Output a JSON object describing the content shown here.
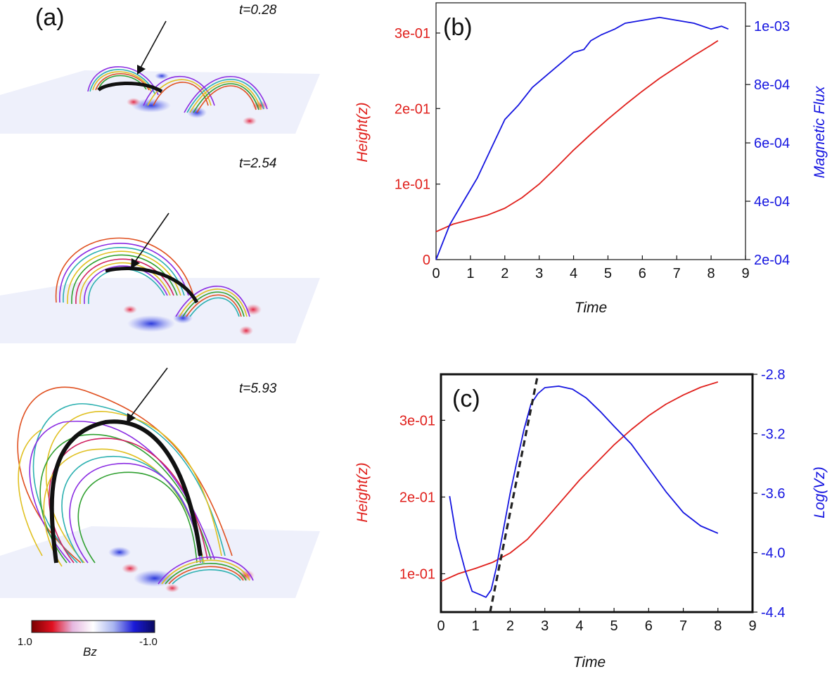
{
  "panel_a": {
    "label": "(a)",
    "snapshots": [
      {
        "time_label": "t=0.28"
      },
      {
        "time_label": "t=2.54"
      },
      {
        "time_label": "t=5.93"
      }
    ],
    "colorbar": {
      "title": "Bz",
      "min_label": "1.0",
      "max_label": "-1.0",
      "colors": [
        "#7a0000",
        "#e01020",
        "#e6b8e0",
        "#ffffff",
        "#a8b4f0",
        "#1a1ad8",
        "#0a0a60"
      ]
    }
  },
  "chart_data": [
    {
      "type": "line",
      "panel_label": "(b)",
      "xlabel": "Time",
      "ylabel_left": "Height(z)",
      "ylabel_right": "Magnetic Flux",
      "xlim": [
        0,
        9
      ],
      "ylim_left": [
        0,
        0.34
      ],
      "ylim_right": [
        0.0002,
        0.00108
      ],
      "x_ticks": [
        "0",
        "1",
        "2",
        "3",
        "4",
        "5",
        "6",
        "7",
        "8",
        "9"
      ],
      "y_ticks_left": [
        {
          "value": 0,
          "label": "0"
        },
        {
          "value": 0.1,
          "label": "1e-01"
        },
        {
          "value": 0.2,
          "label": "2e-01"
        },
        {
          "value": 0.3,
          "label": "3e-01"
        }
      ],
      "y_ticks_right": [
        {
          "value": 0.0002,
          "label": "2e-04"
        },
        {
          "value": 0.0004,
          "label": "4e-04"
        },
        {
          "value": 0.0006,
          "label": "6e-04"
        },
        {
          "value": 0.0008,
          "label": "8e-04"
        },
        {
          "value": 0.001,
          "label": "1e-03"
        }
      ],
      "series": [
        {
          "name": "Height",
          "axis": "left",
          "color": "#e0201c",
          "x": [
            0,
            0.5,
            1,
            1.5,
            2,
            2.5,
            3,
            3.5,
            4,
            4.5,
            5,
            5.5,
            6,
            6.5,
            7,
            7.5,
            8,
            8.2
          ],
          "y": [
            0.037,
            0.047,
            0.053,
            0.059,
            0.068,
            0.082,
            0.1,
            0.122,
            0.145,
            0.166,
            0.186,
            0.205,
            0.223,
            0.24,
            0.255,
            0.27,
            0.284,
            0.29
          ]
        },
        {
          "name": "Magnetic Flux",
          "axis": "right",
          "color": "#1515e0",
          "x": [
            0,
            0.4,
            0.8,
            1.2,
            1.6,
            2.0,
            2.4,
            2.8,
            3.2,
            3.6,
            4.0,
            4.3,
            4.5,
            4.8,
            5.2,
            5.5,
            6.0,
            6.5,
            7.0,
            7.5,
            8.0,
            8.3,
            8.5
          ],
          "y": [
            0.0002,
            0.00032,
            0.0004,
            0.00048,
            0.00058,
            0.00068,
            0.00073,
            0.00079,
            0.00083,
            0.00087,
            0.00091,
            0.00092,
            0.00095,
            0.00097,
            0.00099,
            0.00101,
            0.00102,
            0.00103,
            0.00102,
            0.00101,
            0.00099,
            0.001,
            0.00099
          ]
        }
      ]
    },
    {
      "type": "line",
      "panel_label": "(c)",
      "xlabel": "Time",
      "ylabel_left": "Height(z)",
      "ylabel_right": "Log(Vz)",
      "xlim": [
        0,
        9
      ],
      "ylim_left": [
        0.05,
        0.36
      ],
      "ylim_right": [
        -4.4,
        -2.8
      ],
      "x_ticks": [
        "0",
        "1",
        "2",
        "3",
        "4",
        "5",
        "6",
        "7",
        "8",
        "9"
      ],
      "y_ticks_left": [
        {
          "value": 0.1,
          "label": "1e-01"
        },
        {
          "value": 0.2,
          "label": "2e-01"
        },
        {
          "value": 0.3,
          "label": "3e-01"
        }
      ],
      "y_ticks_right": [
        {
          "value": -2.8,
          "label": "-2.8"
        },
        {
          "value": -3.2,
          "label": "-3.2"
        },
        {
          "value": -3.6,
          "label": "-3.6"
        },
        {
          "value": -4.0,
          "label": "-4.0"
        },
        {
          "value": -4.4,
          "label": "-4.4"
        }
      ],
      "series": [
        {
          "name": "Height",
          "axis": "left",
          "color": "#e0201c",
          "x": [
            0,
            0.5,
            1,
            1.5,
            2,
            2.5,
            3,
            3.5,
            4,
            4.5,
            5,
            5.5,
            6,
            6.5,
            7,
            7.5,
            8
          ],
          "y": [
            0.09,
            0.1,
            0.107,
            0.115,
            0.127,
            0.145,
            0.17,
            0.196,
            0.222,
            0.245,
            0.268,
            0.288,
            0.306,
            0.321,
            0.333,
            0.343,
            0.35
          ]
        },
        {
          "name": "Log(Vz)",
          "axis": "right",
          "color": "#1515e0",
          "x": [
            0.25,
            0.45,
            0.7,
            0.9,
            1.1,
            1.3,
            1.45,
            1.6,
            1.8,
            2.0,
            2.2,
            2.4,
            2.6,
            2.8,
            3.0,
            3.4,
            3.8,
            4.2,
            4.6,
            5.0,
            5.5,
            6.0,
            6.5,
            7.0,
            7.5,
            8.0
          ],
          "y": [
            -3.62,
            -3.9,
            -4.12,
            -4.26,
            -4.28,
            -4.3,
            -4.25,
            -4.1,
            -3.85,
            -3.6,
            -3.38,
            -3.17,
            -3.0,
            -2.93,
            -2.89,
            -2.88,
            -2.9,
            -2.96,
            -3.05,
            -3.15,
            -3.27,
            -3.43,
            -3.59,
            -3.73,
            -3.82,
            -3.87
          ]
        },
        {
          "name": "fit",
          "axis": "left",
          "color": "#222222",
          "dashed": true,
          "x": [
            1.42,
            2.8
          ],
          "y": [
            0.05,
            0.36
          ]
        }
      ]
    }
  ]
}
